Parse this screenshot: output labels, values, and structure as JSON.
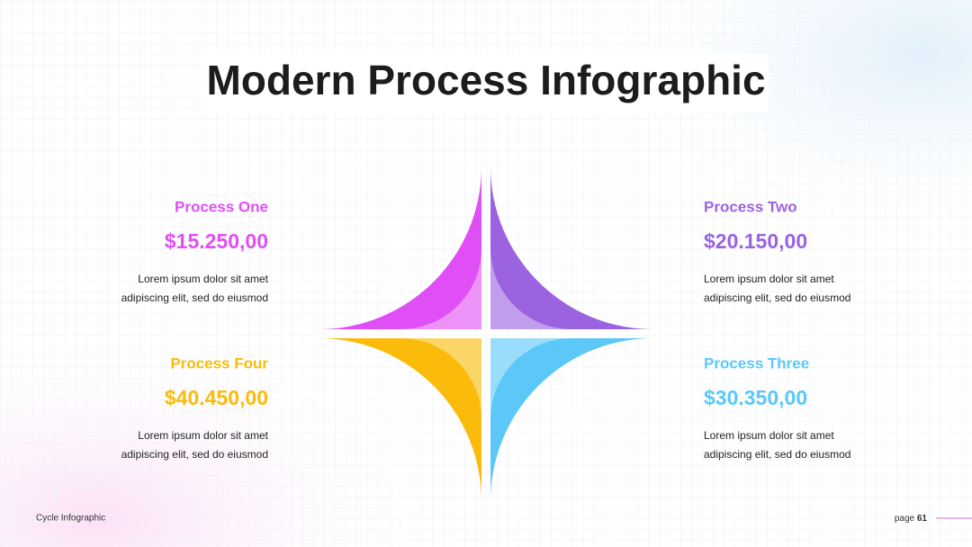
{
  "title": "Modern Process Infographic",
  "processes": [
    {
      "name": "Process One",
      "amount": "$15.250,00",
      "color": "#e04ff5",
      "description": [
        "Lorem ipsum dolor sit amet",
        "adipiscing elit, sed do eiusmod"
      ]
    },
    {
      "name": "Process Two",
      "amount": "$20.150,00",
      "color": "#9b63e0",
      "description": [
        "Lorem ipsum dolor sit amet",
        "adipiscing elit, sed do eiusmod"
      ]
    },
    {
      "name": "Process Three",
      "amount": "$30.350,00",
      "color": "#5bc8f8",
      "description": [
        "Lorem ipsum dolor sit amet",
        "adipiscing elit, sed do eiusmod"
      ]
    },
    {
      "name": "Process Four",
      "amount": "$40.450,00",
      "color": "#fbbb0a",
      "description": [
        "Lorem ipsum dolor sit amet",
        "adipiscing elit, sed do eiusmod"
      ]
    }
  ],
  "footer": {
    "label": "Cycle Infographic",
    "page_label": "page",
    "page_number": "61"
  }
}
